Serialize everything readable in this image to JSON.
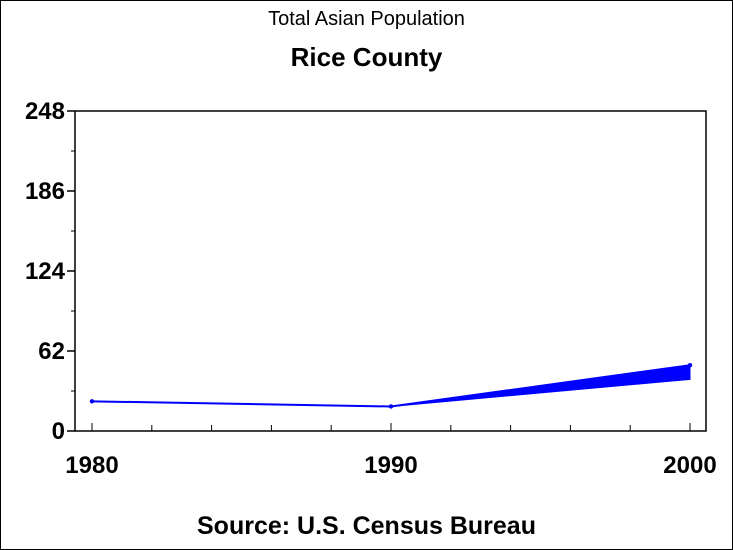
{
  "chart_data": {
    "type": "line",
    "title": "Total Asian Population",
    "subtitle": "Rice County",
    "footnote": "Source: U.S. Census Bureau",
    "x": [
      1980,
      1990,
      2000
    ],
    "series": [
      {
        "values": [
          23,
          19,
          51
        ],
        "color": "#0000ff"
      }
    ],
    "upper_band_2000": 51,
    "lower_band_2000": 40,
    "xlim": [
      1980,
      2000
    ],
    "ylim": [
      0,
      248
    ],
    "yticks": [
      0,
      62,
      124,
      186,
      248
    ],
    "xticks": [
      1980,
      1990,
      2000
    ],
    "grid": false
  }
}
